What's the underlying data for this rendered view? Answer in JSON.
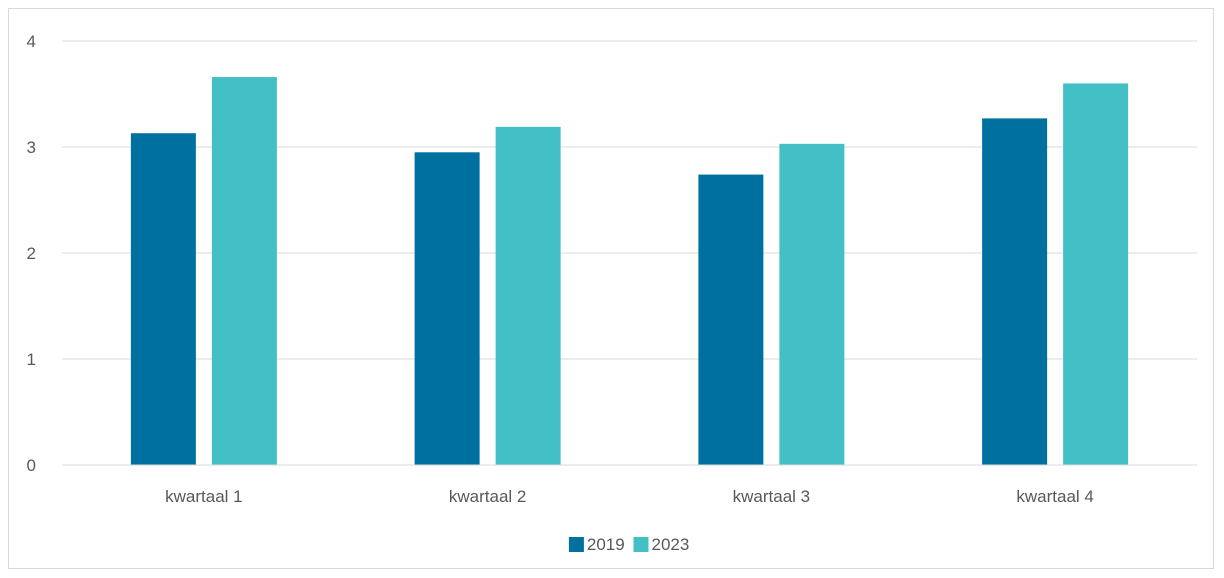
{
  "chart_data": {
    "type": "bar",
    "title": "",
    "xlabel": "",
    "ylabel": "",
    "categories": [
      "kwartaal 1",
      "kwartaal 2",
      "kwartaal 3",
      "kwartaal 4"
    ],
    "series": [
      {
        "name": "2019",
        "color": "#0070a0",
        "values": [
          3.13,
          2.95,
          2.74,
          3.27
        ]
      },
      {
        "name": "2023",
        "color": "#42c0c6",
        "values": [
          3.66,
          3.19,
          3.03,
          3.6
        ]
      }
    ],
    "yticks": [
      "0",
      "1",
      "2",
      "3",
      "4"
    ],
    "ylim": [
      0,
      4
    ],
    "grid": true,
    "legend_position": "bottom-center",
    "colors": {
      "gridline": "#d9d9d9",
      "axis_text": "#595959",
      "border": "#d9d9d9"
    }
  }
}
